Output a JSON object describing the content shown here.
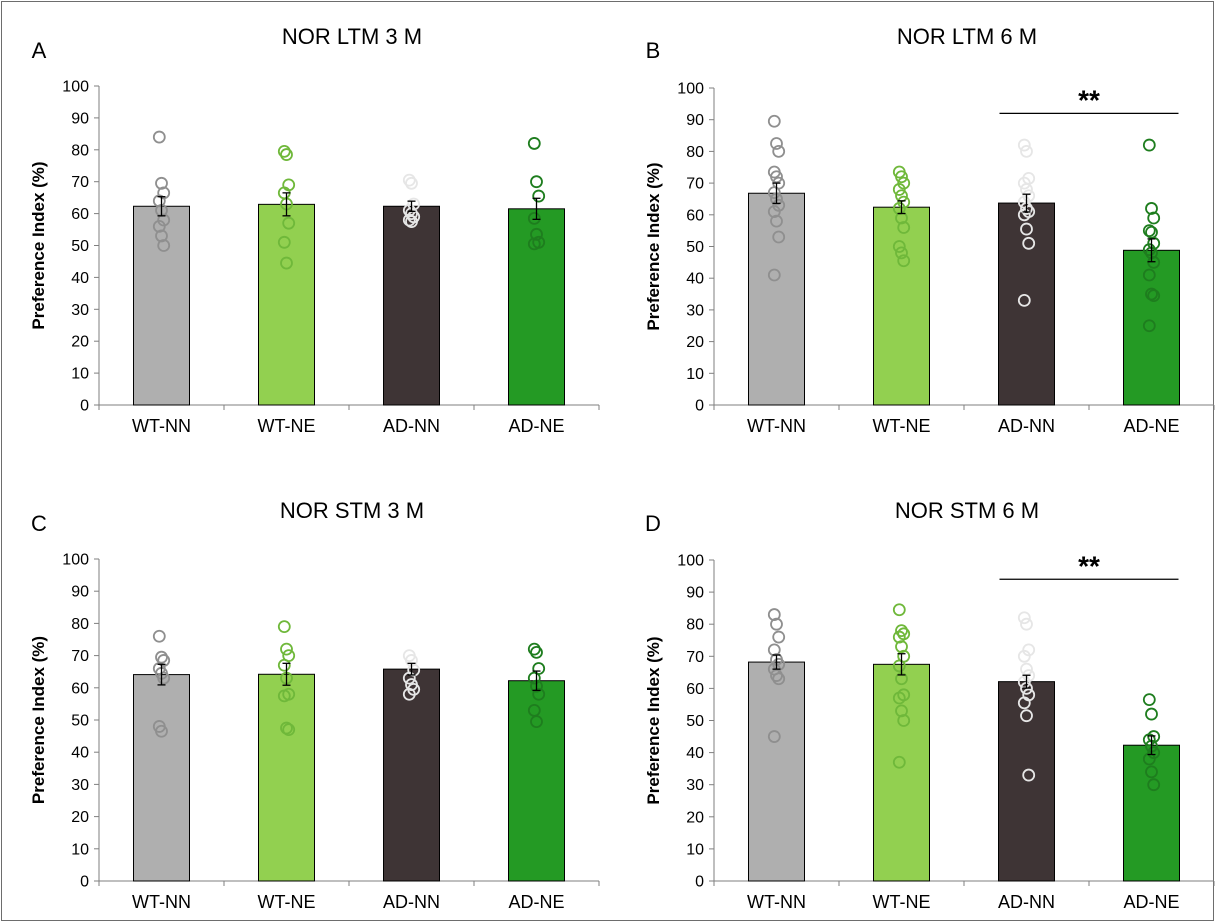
{
  "colors": {
    "WT-NN": "#afafaf",
    "WT-NE": "#92d050",
    "AD-NN": "#3e3435",
    "AD-NE": "#249a24",
    "dots": {
      "WT-NN": "#8f8f8f",
      "WT-NE": "#6fb83a",
      "AD-NN": "#e6e6e6",
      "AD-NE": "#1e7d1e"
    }
  },
  "chart_data": [
    {
      "type": "bar",
      "letter": "A",
      "title": "NOR LTM 3 M",
      "ylabel": "Preference Index (%)",
      "xlabel": "",
      "ylim": [
        0,
        100
      ],
      "yticks": [
        "0",
        "10",
        "20",
        "30",
        "40",
        "50",
        "60",
        "70",
        "80",
        "90",
        "100"
      ],
      "categories": [
        "WT-NN",
        "WT-NE",
        "AD-NN",
        "AD-NE"
      ],
      "values": [
        62.3,
        62.9,
        62.3,
        61.5
      ],
      "errors": [
        3.0,
        3.6,
        1.6,
        3.3
      ],
      "points": [
        [
          84,
          69.5,
          66.5,
          64,
          61,
          58,
          56,
          53,
          50
        ],
        [
          79.5,
          78.5,
          69,
          66.5,
          63,
          57,
          51,
          44.5
        ],
        [
          70.5,
          69.5,
          63,
          61,
          60,
          59,
          58,
          57.5
        ],
        [
          82,
          70,
          65.5,
          58.5,
          53.5,
          51,
          50.5
        ]
      ],
      "significance": null
    },
    {
      "type": "bar",
      "letter": "B",
      "title": "NOR LTM 6 M",
      "ylabel": "Preference Index (%)",
      "xlabel": "",
      "ylim": [
        0,
        100
      ],
      "yticks": [
        "0",
        "10",
        "20",
        "30",
        "40",
        "50",
        "60",
        "70",
        "80",
        "90",
        "100"
      ],
      "categories": [
        "WT-NN",
        "WT-NE",
        "AD-NN",
        "AD-NE"
      ],
      "values": [
        66.8,
        62.4,
        63.7,
        48.8
      ],
      "errors": [
        3.2,
        2.0,
        2.8,
        3.6
      ],
      "points": [
        [
          89.5,
          82.5,
          80,
          73.5,
          72,
          70,
          67,
          65,
          63,
          61,
          58,
          53,
          41
        ],
        [
          73.5,
          72,
          70,
          68,
          66,
          64,
          62,
          59,
          56,
          50,
          48,
          45.5
        ],
        [
          82,
          80,
          71.5,
          70,
          68,
          66,
          64,
          62,
          61,
          60,
          55.5,
          51,
          33
        ],
        [
          82,
          62,
          59,
          55,
          54.5,
          51,
          49,
          48,
          45,
          41,
          35,
          34.5,
          25
        ]
      ],
      "significance": {
        "from": 2,
        "to": 3,
        "label": "**",
        "y": 92
      }
    },
    {
      "type": "bar",
      "letter": "C",
      "title": "NOR STM 3 M",
      "ylabel": "Preference Index (%)",
      "xlabel": "",
      "ylim": [
        0,
        100
      ],
      "yticks": [
        "0",
        "10",
        "20",
        "30",
        "40",
        "50",
        "60",
        "70",
        "80",
        "90",
        "100"
      ],
      "categories": [
        "WT-NN",
        "WT-NE",
        "AD-NN",
        "AD-NE"
      ],
      "values": [
        64.1,
        64.2,
        65.8,
        62.2
      ],
      "errors": [
        3.2,
        3.4,
        1.8,
        3.0
      ],
      "points": [
        [
          76,
          69.5,
          68.5,
          66,
          64.5,
          63,
          48,
          46.5
        ],
        [
          79,
          72,
          70,
          67,
          63,
          58,
          57.5,
          47.5,
          47
        ],
        [
          70,
          68.5,
          65.5,
          63,
          61,
          59.5,
          58
        ],
        [
          72,
          71,
          66,
          63,
          60.5,
          58,
          53,
          49.5
        ]
      ],
      "significance": null
    },
    {
      "type": "bar",
      "letter": "D",
      "title": "NOR STM 6 M",
      "ylabel": "Preference Index (%)",
      "xlabel": "",
      "ylim": [
        0,
        100
      ],
      "yticks": [
        "0",
        "10",
        "20",
        "30",
        "40",
        "50",
        "60",
        "70",
        "80",
        "90",
        "100"
      ],
      "categories": [
        "WT-NN",
        "WT-NE",
        "AD-NN",
        "AD-NE"
      ],
      "values": [
        68.2,
        67.5,
        62.1,
        42.3
      ],
      "errors": [
        2.2,
        3.3,
        2.0,
        2.9
      ],
      "points": [
        [
          83,
          80,
          76,
          72,
          69,
          67.5,
          66,
          64,
          63,
          45
        ],
        [
          84.5,
          78,
          77,
          76,
          73,
          70,
          67,
          63,
          58,
          57,
          53,
          50,
          37
        ],
        [
          82,
          80,
          72,
          70,
          66,
          64,
          62,
          60,
          58,
          55.5,
          51.5,
          33
        ],
        [
          56.5,
          52,
          45,
          44,
          42,
          40,
          38,
          34,
          30
        ]
      ],
      "significance": {
        "from": 2,
        "to": 3,
        "label": "**",
        "y": 94
      }
    }
  ]
}
